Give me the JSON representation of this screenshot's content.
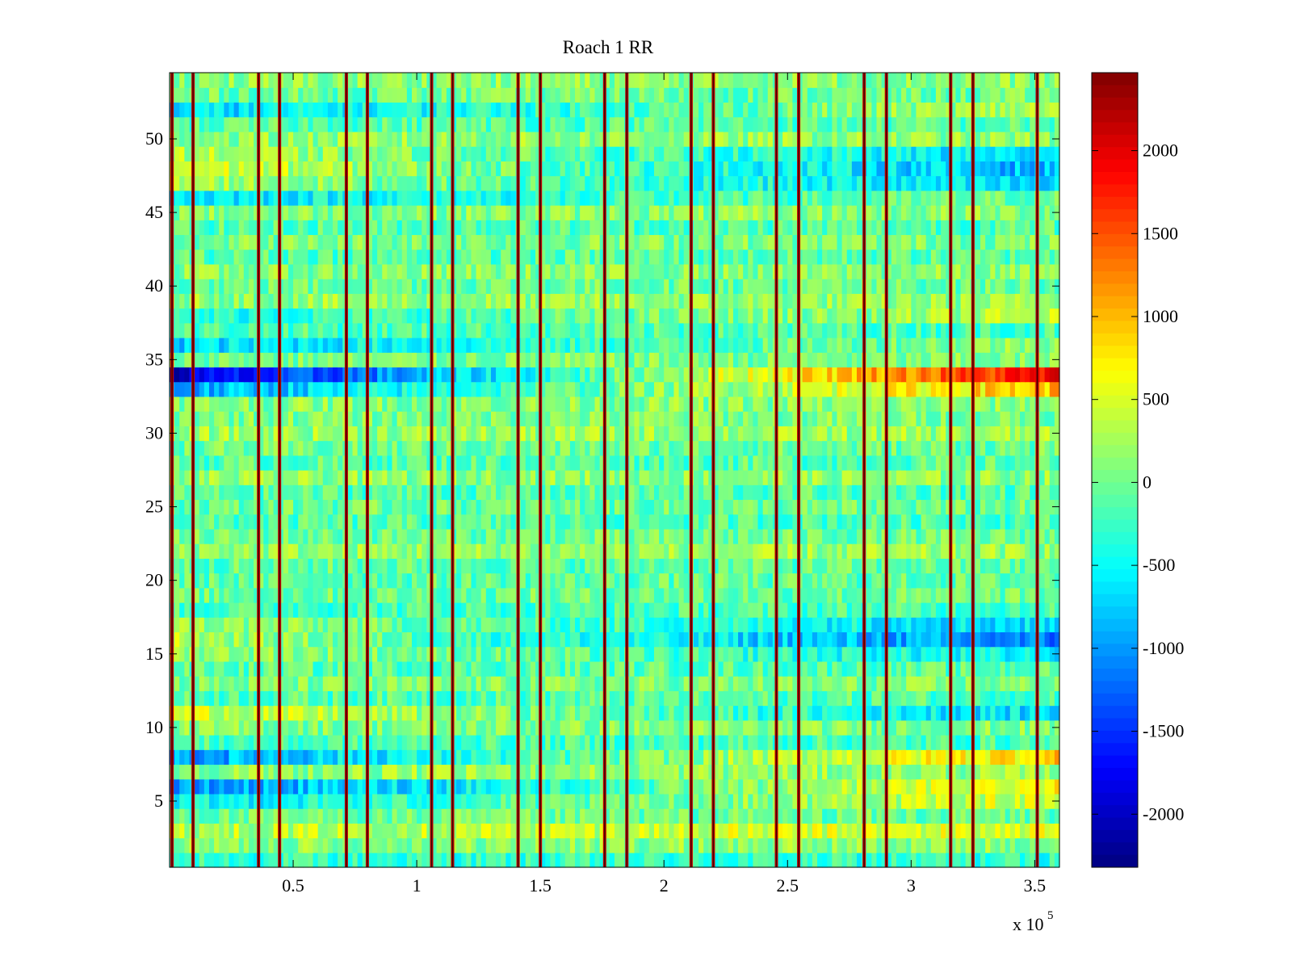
{
  "chart_data": {
    "type": "heatmap",
    "title": "Roach 1 RR",
    "xlabel": "",
    "ylabel": "",
    "x_multiplier_label": "x 10",
    "x_multiplier_exponent": "5",
    "xlim": [
      0,
      360000
    ],
    "ylim": [
      0.5,
      54.5
    ],
    "x_ticks": [
      {
        "value": 50000,
        "label": "0.5"
      },
      {
        "value": 100000,
        "label": "1"
      },
      {
        "value": 150000,
        "label": "1.5"
      },
      {
        "value": 200000,
        "label": "2"
      },
      {
        "value": 250000,
        "label": "2.5"
      },
      {
        "value": 300000,
        "label": "3"
      },
      {
        "value": 350000,
        "label": "3.5"
      }
    ],
    "y_ticks": [
      {
        "value": 5,
        "label": "5"
      },
      {
        "value": 10,
        "label": "10"
      },
      {
        "value": 15,
        "label": "15"
      },
      {
        "value": 20,
        "label": "20"
      },
      {
        "value": 25,
        "label": "25"
      },
      {
        "value": 30,
        "label": "30"
      },
      {
        "value": 35,
        "label": "35"
      },
      {
        "value": 40,
        "label": "40"
      },
      {
        "value": 45,
        "label": "45"
      },
      {
        "value": 50,
        "label": "50"
      }
    ],
    "colormap": "jet",
    "clim": [
      -2320,
      2470
    ],
    "colorbar_ticks": [
      {
        "value": 2000,
        "label": "2000"
      },
      {
        "value": 1500,
        "label": "1500"
      },
      {
        "value": 1000,
        "label": "1000"
      },
      {
        "value": 500,
        "label": "500"
      },
      {
        "value": 0,
        "label": "0"
      },
      {
        "value": -500,
        "label": "-500"
      },
      {
        "value": -1000,
        "label": "-1000"
      },
      {
        "value": -1500,
        "label": "-1500"
      },
      {
        "value": -2000,
        "label": "-2000"
      }
    ],
    "channels": 54,
    "rows": [
      {
        "channel": 34,
        "value_start": -2000,
        "value_end": 1900
      },
      {
        "channel": 33,
        "value_start": -1000,
        "value_end": 1000
      },
      {
        "channel": 16,
        "value_start": 300,
        "value_end": -1200
      },
      {
        "channel": 17,
        "value_start": 200,
        "value_end": -700
      },
      {
        "channel": 15,
        "value_start": 250,
        "value_end": -600
      },
      {
        "channel": 11,
        "value_start": 500,
        "value_end": -700
      },
      {
        "channel": 8,
        "value_start": -1000,
        "value_end": 900
      },
      {
        "channel": 6,
        "value_start": -1100,
        "value_end": 700
      },
      {
        "channel": 5,
        "value_start": -600,
        "value_end": 500
      },
      {
        "channel": 48,
        "value_start": 500,
        "value_end": -900
      },
      {
        "channel": 49,
        "value_start": 300,
        "value_end": -700
      },
      {
        "channel": 47,
        "value_start": 300,
        "value_end": -800
      },
      {
        "channel": 52,
        "value_start": -700,
        "value_end": 300
      },
      {
        "channel": 46,
        "value_start": -600,
        "value_end": 0
      },
      {
        "channel": 36,
        "value_start": -700,
        "value_end": 200
      },
      {
        "channel": 38,
        "value_start": -400,
        "value_end": 300
      },
      {
        "channel": 3,
        "value_start": 300,
        "value_end": 500
      },
      {
        "channel": 1,
        "value_start": -300,
        "value_end": -300
      }
    ],
    "vertical_events_x": [
      1000,
      9500,
      36000,
      44500,
      71500,
      80000,
      106000,
      114500,
      141000,
      150000,
      176000,
      185000,
      211000,
      220000,
      245500,
      254500,
      281000,
      290000,
      316000,
      325000,
      351000
    ]
  }
}
